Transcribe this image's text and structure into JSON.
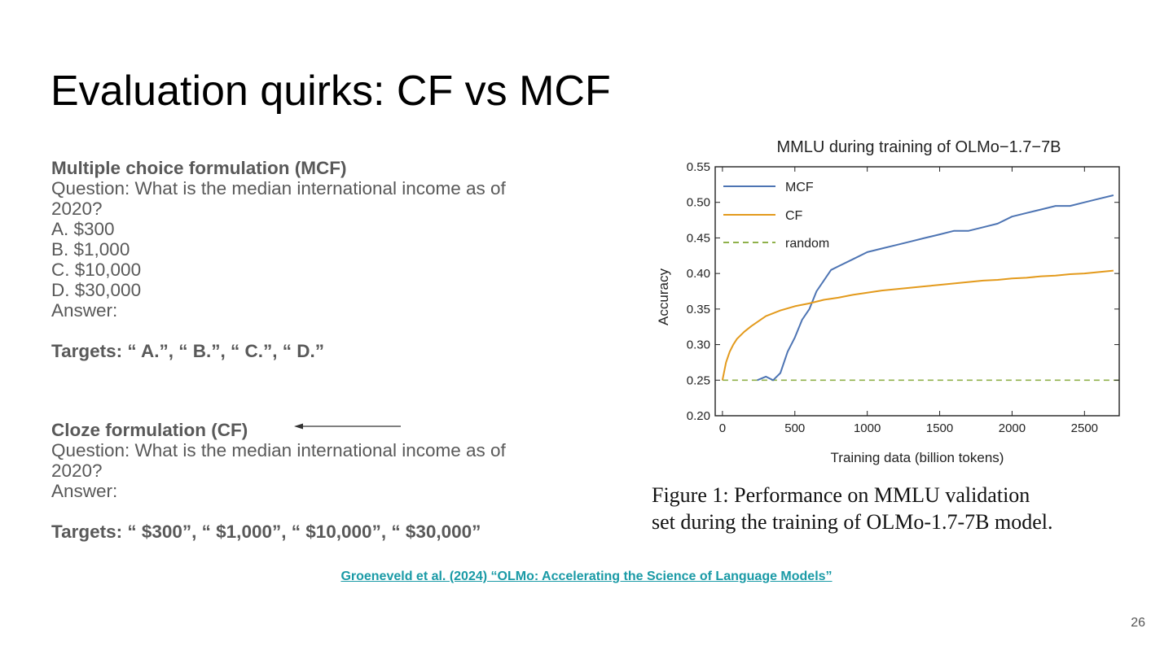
{
  "slide": {
    "title": "Evaluation quirks: CF vs MCF",
    "page_number": "26"
  },
  "mcf": {
    "heading": "Multiple choice formulation (MCF)",
    "question_line1": "Question: What is the median international income as of",
    "question_line2": "2020?",
    "option_a": "A. $300",
    "option_b": "B. $1,000",
    "option_c": "C. $10,000",
    "option_d": "D. $30,000",
    "answer": "Answer:",
    "targets": "Targets: “ A.”, “ B.”, “ C.”, “ D.”"
  },
  "cf": {
    "heading": "Cloze formulation (CF)",
    "question_line1": "Question: What is the median international income as of",
    "question_line2": "2020?",
    "answer": "Answer:",
    "targets": "Targets: “ $300”, “ $1,000”, “ $10,000”, “ $30,000”"
  },
  "figure": {
    "caption_line1": "Figure 1:  Performance on MMLU validation",
    "caption_line2": "set during the training of OLMo-1.7-7B model."
  },
  "citation": {
    "text": "Groeneveld et al. (2024) “OLMo: Accelerating the Science of Language Models”"
  },
  "chart_data": {
    "type": "line",
    "title": "MMLU during training of OLMo−1.7−7B",
    "xlabel": "Training data (billion tokens)",
    "ylabel": "Accuracy",
    "xlim": [
      -50,
      2740
    ],
    "ylim": [
      0.2,
      0.55
    ],
    "xticks": [
      0,
      500,
      1000,
      1500,
      2000,
      2500
    ],
    "yticks": [
      0.2,
      0.25,
      0.3,
      0.35,
      0.4,
      0.45,
      0.5,
      0.55
    ],
    "xtick_labels": [
      "0",
      "500",
      "1000",
      "1500",
      "2000",
      "2500"
    ],
    "ytick_labels": [
      "0.20",
      "0.25",
      "0.30",
      "0.35",
      "0.40",
      "0.45",
      "0.50",
      "0.55"
    ],
    "legend_position": "top-left",
    "colors": {
      "mcf": "#4d74b3",
      "cf": "#e39a1c",
      "random": "#8fb14a"
    },
    "series": [
      {
        "name": "MCF",
        "x": [
          240,
          300,
          350,
          400,
          450,
          500,
          550,
          600,
          650,
          700,
          750,
          800,
          900,
          1000,
          1100,
          1200,
          1300,
          1400,
          1500,
          1600,
          1700,
          1800,
          1900,
          2000,
          2100,
          2200,
          2300,
          2400,
          2500,
          2600,
          2700
        ],
        "values": [
          0.25,
          0.255,
          0.25,
          0.26,
          0.29,
          0.31,
          0.335,
          0.35,
          0.375,
          0.39,
          0.405,
          0.41,
          0.42,
          0.43,
          0.435,
          0.44,
          0.445,
          0.45,
          0.455,
          0.46,
          0.46,
          0.465,
          0.47,
          0.48,
          0.485,
          0.49,
          0.495,
          0.495,
          0.5,
          0.505,
          0.51
        ]
      },
      {
        "name": "CF",
        "x": [
          0,
          25,
          50,
          75,
          100,
          150,
          200,
          250,
          300,
          400,
          500,
          600,
          700,
          800,
          900,
          1000,
          1100,
          1200,
          1300,
          1400,
          1500,
          1600,
          1700,
          1800,
          1900,
          2000,
          2100,
          2200,
          2300,
          2400,
          2500,
          2600,
          2700
        ],
        "values": [
          0.25,
          0.275,
          0.29,
          0.3,
          0.308,
          0.318,
          0.326,
          0.333,
          0.34,
          0.348,
          0.354,
          0.358,
          0.363,
          0.366,
          0.37,
          0.373,
          0.376,
          0.378,
          0.38,
          0.382,
          0.384,
          0.386,
          0.388,
          0.39,
          0.391,
          0.393,
          0.394,
          0.396,
          0.397,
          0.399,
          0.4,
          0.402,
          0.404
        ]
      },
      {
        "name": "random",
        "x": [
          0,
          2740
        ],
        "values": [
          0.25,
          0.25
        ]
      }
    ]
  }
}
